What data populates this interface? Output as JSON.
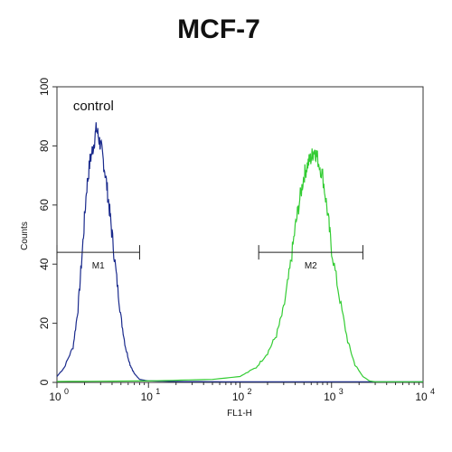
{
  "chart_data": {
    "type": "line",
    "title": "MCF-7",
    "xlabel": "FL1-H",
    "ylabel": "Counts",
    "x_scale": "log",
    "xlim": [
      1,
      10000
    ],
    "ylim": [
      0,
      100
    ],
    "x_ticks": [
      {
        "value": 1,
        "base": "10",
        "exp": "0"
      },
      {
        "value": 10,
        "base": "10",
        "exp": "1"
      },
      {
        "value": 100,
        "base": "10",
        "exp": "2"
      },
      {
        "value": 1000,
        "base": "10",
        "exp": "3"
      },
      {
        "value": 10000,
        "base": "10",
        "exp": "4"
      }
    ],
    "y_ticks": [
      "0",
      "20",
      "40",
      "60",
      "80",
      "100"
    ],
    "grid": false,
    "series": [
      {
        "name": "control",
        "color": "#1a2a8c",
        "x": [
          1.0,
          1.2,
          1.5,
          1.7,
          1.9,
          2.1,
          2.3,
          2.5,
          2.7,
          2.9,
          3.1,
          3.4,
          3.7,
          4.0,
          4.5,
          5.0,
          5.6,
          6.3,
          7.0,
          8.0,
          10,
          20,
          100,
          1000,
          10000
        ],
        "y": [
          2,
          5,
          12,
          25,
          45,
          65,
          75,
          80,
          86,
          82,
          78,
          70,
          60,
          50,
          35,
          22,
          12,
          6,
          3,
          1,
          0.5,
          0.3,
          0.2,
          0.2,
          0.2
        ]
      },
      {
        "name": "",
        "color": "#33cc33",
        "x": [
          1,
          10,
          50,
          100,
          150,
          200,
          250,
          300,
          350,
          400,
          450,
          500,
          550,
          600,
          650,
          700,
          800,
          900,
          1000,
          1200,
          1500,
          1800,
          2200,
          2600,
          3000,
          10000
        ],
        "y": [
          0.3,
          0.5,
          1,
          2,
          5,
          10,
          16,
          25,
          38,
          52,
          62,
          70,
          74,
          76,
          79,
          76,
          70,
          58,
          45,
          30,
          14,
          6,
          2,
          0.5,
          0.2,
          0.2
        ]
      }
    ],
    "annotations": [
      {
        "text": "control",
        "x": 1.5,
        "y": 92
      }
    ],
    "markers": [
      {
        "label": "M1",
        "x_start": 1.0,
        "x_end": 8.0,
        "y": 44
      },
      {
        "label": "M2",
        "x_start": 160,
        "x_end": 2200,
        "y": 44
      }
    ]
  }
}
